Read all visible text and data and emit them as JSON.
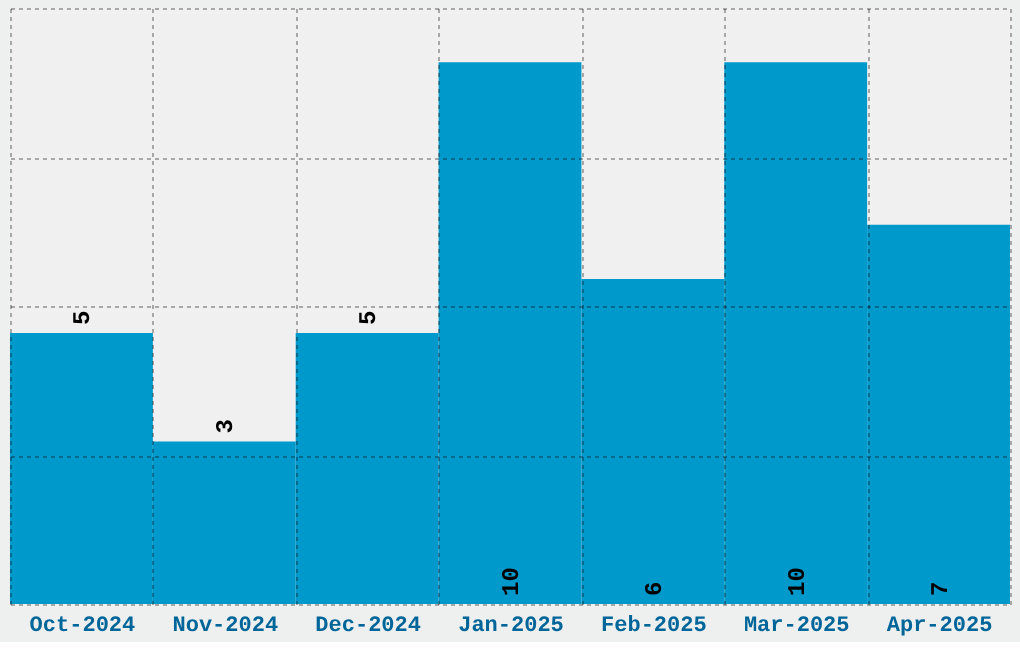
{
  "chart_data": {
    "type": "bar",
    "categories": [
      "Oct-2024",
      "Nov-2024",
      "Dec-2024",
      "Jan-2025",
      "Feb-2025",
      "Mar-2025",
      "Apr-2025"
    ],
    "values": [
      5,
      3,
      5,
      10,
      6,
      10,
      7
    ],
    "color": "#0099cc",
    "ylim": [
      0,
      11
    ],
    "yticks": [
      {
        "value": 0,
        "label": null
      },
      {
        "value": 2.75,
        "label": null
      },
      {
        "value": 5.5,
        "label": null
      },
      {
        "value": 8.25,
        "label": null
      },
      {
        "value": 11,
        "label": null
      }
    ],
    "tick_labels": "x",
    "grid": true,
    "data_labels": true
  }
}
